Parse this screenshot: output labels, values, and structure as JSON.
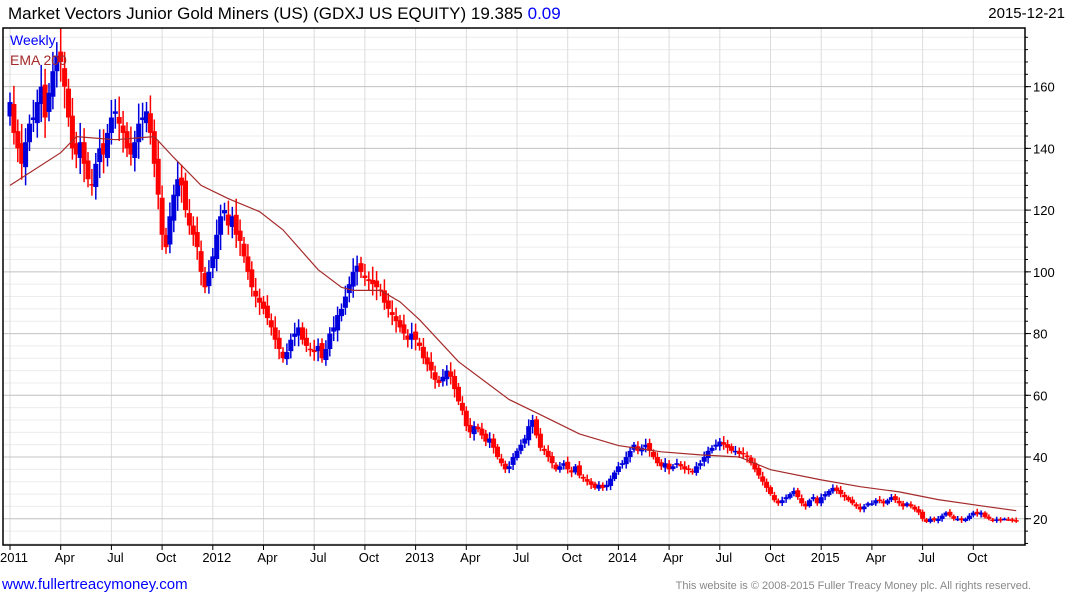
{
  "header": {
    "title": "Market Vectors Junior Gold Miners (US) (GDXJ US EQUITY) 19.385",
    "change": "0.09",
    "date": "2015-12-21"
  },
  "footer": {
    "link": "www.fullertreacymoney.com",
    "copyright": "This website is © 2008-2015 Fuller Treacy Money plc. All rights reserved."
  },
  "colors": {
    "up": "#0000dd",
    "down": "#ff0000",
    "ema": "#a52a2a",
    "weekly": "#0000ff"
  },
  "chart_data": {
    "type": "candlestick",
    "title": "Market Vectors Junior Gold Miners (US) (GDXJ US EQUITY)",
    "legend": [
      "Weekly",
      "EMA 200"
    ],
    "legend_placement": "top-left",
    "ylim": [
      11.5,
      179
    ],
    "yticks": [
      20,
      40,
      60,
      80,
      100,
      120,
      140,
      160
    ],
    "xticks": [
      {
        "week": 0,
        "label": "2011"
      },
      {
        "week": 13,
        "label": "Apr"
      },
      {
        "week": 26,
        "label": "Jul"
      },
      {
        "week": 39,
        "label": "Oct"
      },
      {
        "week": 52,
        "label": "2012"
      },
      {
        "week": 65,
        "label": "Apr"
      },
      {
        "week": 78,
        "label": "Jul"
      },
      {
        "week": 91,
        "label": "Oct"
      },
      {
        "week": 104,
        "label": "2013"
      },
      {
        "week": 117,
        "label": "Apr"
      },
      {
        "week": 130,
        "label": "Jul"
      },
      {
        "week": 143,
        "label": "Oct"
      },
      {
        "week": 156,
        "label": "2014"
      },
      {
        "week": 169,
        "label": "Apr"
      },
      {
        "week": 182,
        "label": "Jul"
      },
      {
        "week": 195,
        "label": "Oct"
      },
      {
        "week": 208,
        "label": "2015"
      },
      {
        "week": 221,
        "label": "Apr"
      },
      {
        "week": 234,
        "label": "Jul"
      },
      {
        "week": 247,
        "label": "Oct"
      }
    ],
    "weekly_close": [
      155,
      145,
      140,
      135,
      142,
      148,
      150,
      155,
      160,
      150,
      158,
      165,
      170,
      168,
      160,
      150,
      140,
      138,
      142,
      135,
      130,
      128,
      135,
      140,
      138,
      145,
      150,
      152,
      148,
      145,
      140,
      138,
      142,
      148,
      150,
      152,
      145,
      135,
      125,
      112,
      108,
      118,
      125,
      130,
      128,
      120,
      115,
      112,
      108,
      100,
      95,
      100,
      105,
      112,
      118,
      120,
      115,
      118,
      112,
      110,
      105,
      100,
      95,
      92,
      90,
      88,
      85,
      82,
      78,
      75,
      72,
      74,
      78,
      80,
      82,
      78,
      76,
      75,
      74,
      76,
      72,
      75,
      80,
      82,
      86,
      88,
      92,
      96,
      100,
      102,
      100,
      98,
      97,
      96,
      95,
      94,
      90,
      88,
      86,
      84,
      82,
      80,
      78,
      80,
      78,
      76,
      72,
      70,
      68,
      65,
      64,
      66,
      68,
      66,
      62,
      58,
      55,
      50,
      48,
      50,
      49,
      47,
      45,
      46,
      43,
      40,
      38,
      36,
      37,
      40,
      42,
      44,
      46,
      50,
      52,
      47,
      43,
      42,
      40,
      38,
      36,
      37,
      38,
      36,
      35,
      37,
      34,
      33,
      32,
      31,
      30,
      31,
      30,
      31,
      33,
      35,
      37,
      38,
      40,
      42,
      44,
      42,
      43,
      44,
      42,
      40,
      38,
      37,
      38,
      36,
      37,
      38,
      37,
      36,
      36,
      35,
      37,
      38,
      40,
      42,
      43,
      44,
      45,
      44,
      43,
      42,
      42,
      41,
      41,
      40,
      38,
      36,
      34,
      32,
      30,
      28,
      26,
      25,
      26,
      27,
      28,
      29,
      27,
      25,
      24,
      26,
      27,
      25,
      27,
      28,
      29,
      30,
      29,
      28,
      27,
      26,
      25,
      24,
      23,
      24,
      25,
      25,
      26,
      26,
      25,
      26,
      27,
      26,
      25,
      24,
      25,
      24,
      23,
      22,
      20,
      19,
      20,
      19.5,
      20,
      21,
      22,
      21,
      20,
      20,
      19.5,
      20,
      21,
      22,
      21.5,
      22,
      20.5,
      20,
      19.5,
      19.8,
      19.6,
      20,
      19.8,
      19.4,
      19.385
    ],
    "ema200": [
      [
        0,
        128
      ],
      [
        13,
        138.6
      ],
      [
        17,
        143.8
      ],
      [
        27,
        142.8
      ],
      [
        37,
        143.8
      ],
      [
        42,
        137
      ],
      [
        49,
        128
      ],
      [
        56,
        123.7
      ],
      [
        64,
        119.5
      ],
      [
        70,
        113.6
      ],
      [
        79,
        100.7
      ],
      [
        85,
        95
      ],
      [
        88,
        94
      ],
      [
        95,
        94
      ],
      [
        100,
        90.3
      ],
      [
        105,
        84.5
      ],
      [
        115,
        70.9
      ],
      [
        128,
        58.6
      ],
      [
        136,
        53.7
      ],
      [
        146,
        47.5
      ],
      [
        156,
        43.7
      ],
      [
        167,
        41.7
      ],
      [
        177,
        40.7
      ],
      [
        187,
        40
      ],
      [
        195,
        35.9
      ],
      [
        208,
        32.6
      ],
      [
        218,
        30.4
      ],
      [
        228,
        28.7
      ],
      [
        238,
        26.2
      ],
      [
        249,
        24.2
      ],
      [
        258,
        22.6
      ]
    ]
  }
}
